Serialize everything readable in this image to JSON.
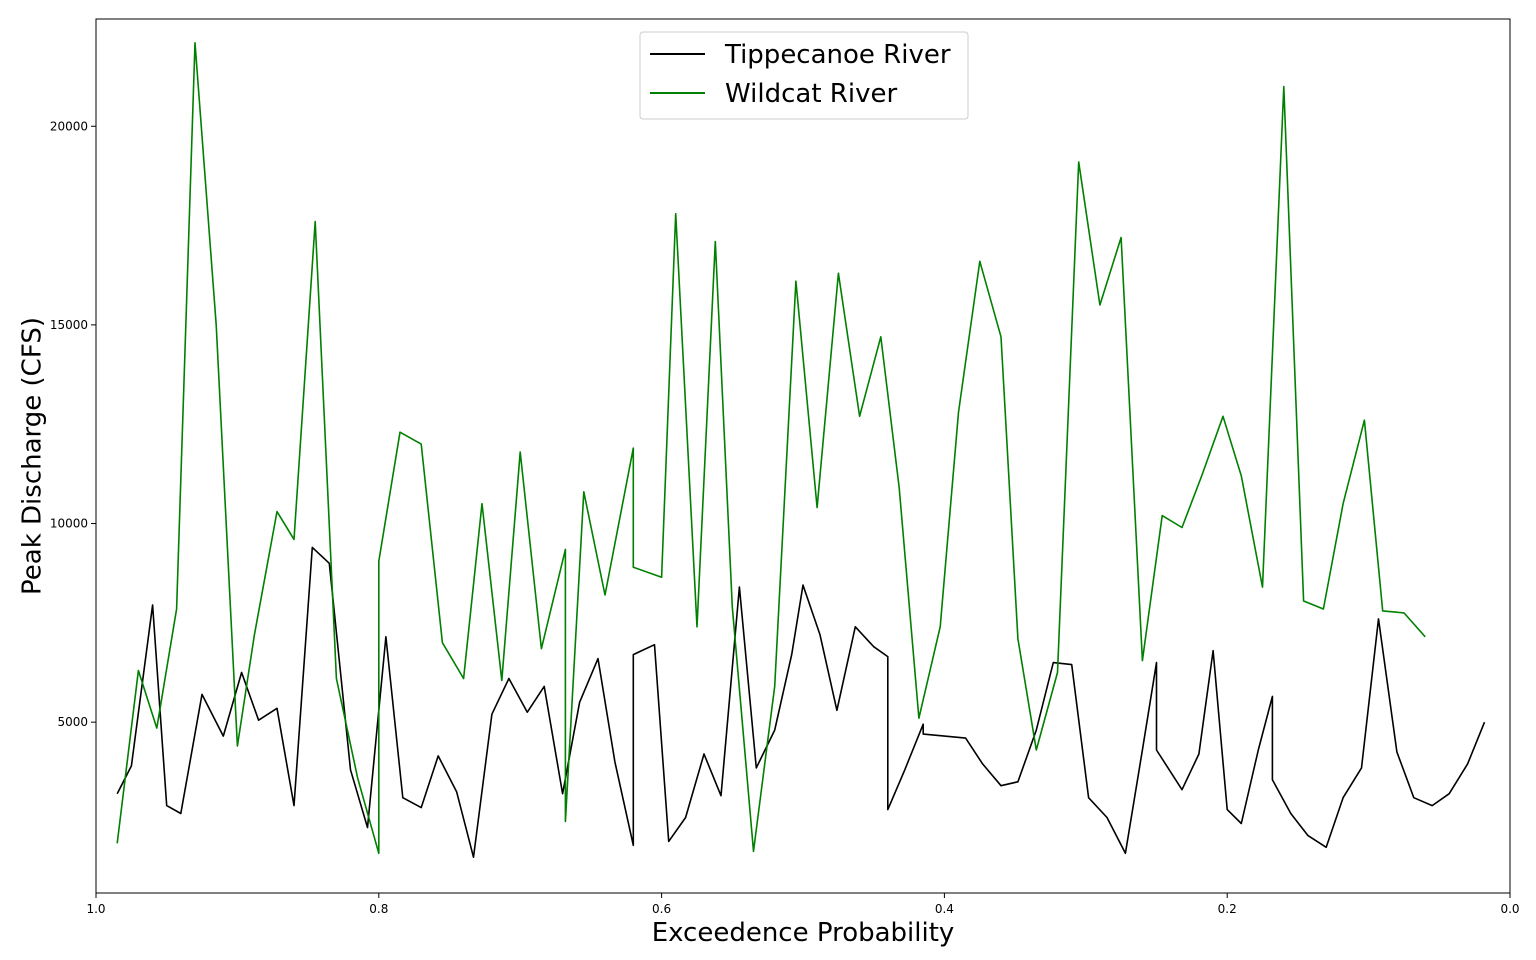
{
  "chart_data": {
    "type": "line",
    "title": "",
    "xlabel": "Exceedence Probability",
    "ylabel": "Peak Discharge (CFS)",
    "xlim": [
      1.0,
      0.0
    ],
    "ylim": [
      700,
      22700
    ],
    "x_reversed": true,
    "grid": false,
    "legend_position": "top-center",
    "x_ticks": [
      1.0,
      0.8,
      0.6,
      0.4,
      0.2,
      0.0
    ],
    "x_tick_labels": [
      "1.0",
      "0.8",
      "0.6",
      "0.4",
      "0.2",
      "0.0"
    ],
    "y_ticks": [
      5000,
      10000,
      15000,
      20000
    ],
    "y_tick_labels": [
      "5000",
      "10000",
      "15000",
      "20000"
    ],
    "series": [
      {
        "name": "Tippecanoe River",
        "color": "#000000",
        "points": [
          [
            0.985,
            3200
          ],
          [
            0.975,
            3900
          ],
          [
            0.96,
            7950
          ],
          [
            0.95,
            2900
          ],
          [
            0.94,
            2700
          ],
          [
            0.925,
            5700
          ],
          [
            0.91,
            4650
          ],
          [
            0.897,
            6250
          ],
          [
            0.885,
            5050
          ],
          [
            0.872,
            5350
          ],
          [
            0.86,
            2900
          ],
          [
            0.847,
            9400
          ],
          [
            0.835,
            9000
          ],
          [
            0.82,
            3800
          ],
          [
            0.808,
            2350
          ],
          [
            0.795,
            7150
          ],
          [
            0.783,
            3100
          ],
          [
            0.77,
            2850
          ],
          [
            0.758,
            4150
          ],
          [
            0.745,
            3250
          ],
          [
            0.733,
            1600
          ],
          [
            0.72,
            5200
          ],
          [
            0.708,
            6100
          ],
          [
            0.695,
            5250
          ],
          [
            0.683,
            5900
          ],
          [
            0.67,
            3200
          ],
          [
            0.658,
            5500
          ],
          [
            0.645,
            6600
          ],
          [
            0.633,
            4000
          ],
          [
            0.62,
            1900
          ],
          [
            0.62,
            6700
          ],
          [
            0.605,
            6950
          ],
          [
            0.595,
            2000
          ],
          [
            0.583,
            2600
          ],
          [
            0.57,
            4200
          ],
          [
            0.558,
            3150
          ],
          [
            0.545,
            8400
          ],
          [
            0.533,
            3850
          ],
          [
            0.52,
            4800
          ],
          [
            0.508,
            6700
          ],
          [
            0.5,
            8450
          ],
          [
            0.488,
            7200
          ],
          [
            0.476,
            5300
          ],
          [
            0.463,
            7400
          ],
          [
            0.45,
            6900
          ],
          [
            0.44,
            6650
          ],
          [
            0.44,
            2800
          ],
          [
            0.428,
            3800
          ],
          [
            0.415,
            4950
          ],
          [
            0.415,
            4700
          ],
          [
            0.4,
            4650
          ],
          [
            0.385,
            4600
          ],
          [
            0.373,
            3950
          ],
          [
            0.36,
            3400
          ],
          [
            0.348,
            3500
          ],
          [
            0.335,
            4800
          ],
          [
            0.323,
            6500
          ],
          [
            0.31,
            6450
          ],
          [
            0.298,
            3100
          ],
          [
            0.285,
            2600
          ],
          [
            0.272,
            1700
          ],
          [
            0.26,
            4300
          ],
          [
            0.25,
            6500
          ],
          [
            0.25,
            4300
          ],
          [
            0.232,
            3300
          ],
          [
            0.22,
            4200
          ],
          [
            0.21,
            6800
          ],
          [
            0.2,
            2800
          ],
          [
            0.19,
            2450
          ],
          [
            0.178,
            4300
          ],
          [
            0.168,
            5650
          ],
          [
            0.168,
            3550
          ],
          [
            0.155,
            2700
          ],
          [
            0.143,
            2150
          ],
          [
            0.13,
            1850
          ],
          [
            0.118,
            3100
          ],
          [
            0.105,
            3850
          ],
          [
            0.093,
            7600
          ],
          [
            0.08,
            4250
          ],
          [
            0.068,
            3100
          ],
          [
            0.055,
            2900
          ],
          [
            0.043,
            3200
          ],
          [
            0.03,
            3950
          ],
          [
            0.018,
            5000
          ]
        ]
      },
      {
        "name": "Wildcat River",
        "color": "#008000",
        "points": [
          [
            0.985,
            1950
          ],
          [
            0.97,
            6300
          ],
          [
            0.957,
            4850
          ],
          [
            0.943,
            7850
          ],
          [
            0.93,
            22100
          ],
          [
            0.915,
            15000
          ],
          [
            0.9,
            4400
          ],
          [
            0.888,
            7200
          ],
          [
            0.872,
            10300
          ],
          [
            0.86,
            9600
          ],
          [
            0.845,
            17600
          ],
          [
            0.83,
            6100
          ],
          [
            0.815,
            3600
          ],
          [
            0.8,
            1700
          ],
          [
            0.8,
            9050
          ],
          [
            0.785,
            12300
          ],
          [
            0.77,
            12000
          ],
          [
            0.755,
            7000
          ],
          [
            0.74,
            6100
          ],
          [
            0.727,
            10500
          ],
          [
            0.713,
            6050
          ],
          [
            0.7,
            11800
          ],
          [
            0.685,
            6850
          ],
          [
            0.668,
            9350
          ],
          [
            0.668,
            2500
          ],
          [
            0.655,
            10800
          ],
          [
            0.64,
            8200
          ],
          [
            0.62,
            11900
          ],
          [
            0.62,
            8900
          ],
          [
            0.6,
            8650
          ],
          [
            0.59,
            17800
          ],
          [
            0.575,
            7400
          ],
          [
            0.562,
            17100
          ],
          [
            0.55,
            7900
          ],
          [
            0.535,
            1750
          ],
          [
            0.52,
            5900
          ],
          [
            0.505,
            16100
          ],
          [
            0.49,
            10400
          ],
          [
            0.475,
            16300
          ],
          [
            0.46,
            12700
          ],
          [
            0.445,
            14700
          ],
          [
            0.432,
            10900
          ],
          [
            0.418,
            5100
          ],
          [
            0.403,
            7400
          ],
          [
            0.39,
            12800
          ],
          [
            0.375,
            16600
          ],
          [
            0.36,
            14700
          ],
          [
            0.348,
            7100
          ],
          [
            0.335,
            4300
          ],
          [
            0.32,
            6250
          ],
          [
            0.305,
            19100
          ],
          [
            0.29,
            15500
          ],
          [
            0.275,
            17200
          ],
          [
            0.26,
            6550
          ],
          [
            0.246,
            10200
          ],
          [
            0.232,
            9900
          ],
          [
            0.218,
            11200
          ],
          [
            0.203,
            12700
          ],
          [
            0.19,
            11200
          ],
          [
            0.175,
            8400
          ],
          [
            0.16,
            21000
          ],
          [
            0.146,
            8050
          ],
          [
            0.132,
            7850
          ],
          [
            0.118,
            10500
          ],
          [
            0.103,
            12600
          ],
          [
            0.09,
            7800
          ],
          [
            0.075,
            7750
          ],
          [
            0.06,
            7150
          ]
        ]
      }
    ]
  }
}
